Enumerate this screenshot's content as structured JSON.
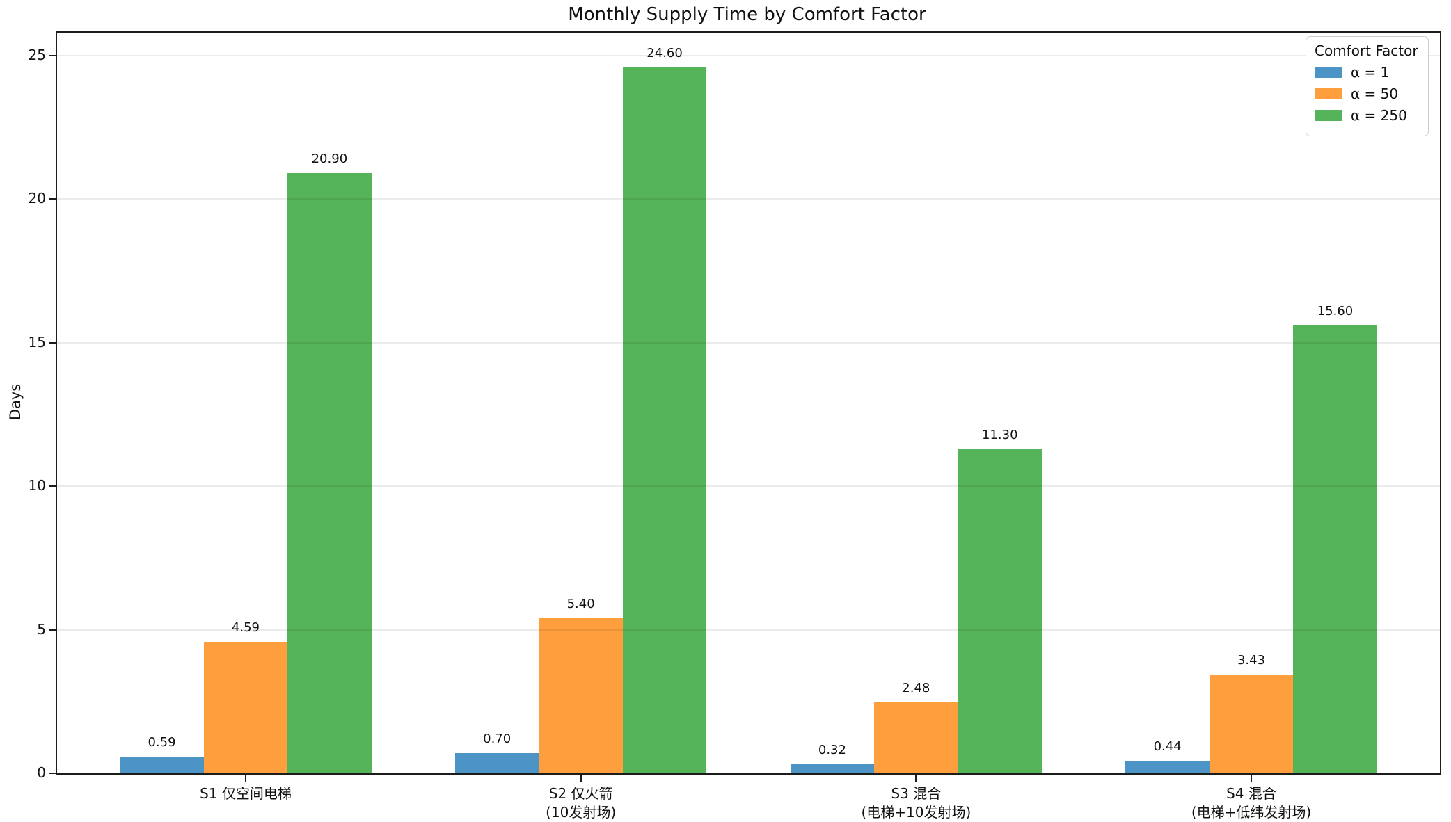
{
  "chart_data": {
    "type": "bar",
    "title": "Monthly Supply Time by Comfort Factor",
    "ylabel": "Days",
    "xlabel": "",
    "ylim": [
      0,
      25.8
    ],
    "yticks": [
      0,
      5,
      10,
      15,
      20,
      25
    ],
    "grid": "horizontal-light",
    "legend": {
      "title": "Comfort Factor",
      "position": "upper-right"
    },
    "categories": [
      {
        "lines": [
          "S1 仅空间电梯"
        ]
      },
      {
        "lines": [
          "S2 仅火箭",
          "(10发射场)"
        ]
      },
      {
        "lines": [
          "S3 混合",
          "(电梯+10发射场)"
        ]
      },
      {
        "lines": [
          "S4 混合",
          "(电梯+低纬发射场)"
        ]
      }
    ],
    "series": [
      {
        "name": "α = 1",
        "color": "#4D94C6",
        "values": [
          0.59,
          0.7,
          0.32,
          0.44
        ],
        "labels": [
          "0.59",
          "0.70",
          "0.32",
          "0.44"
        ]
      },
      {
        "name": "α = 50",
        "color": "#FF9E3C",
        "values": [
          4.59,
          5.4,
          2.48,
          3.43
        ],
        "labels": [
          "4.59",
          "5.40",
          "2.48",
          "3.43"
        ]
      },
      {
        "name": "α = 250",
        "color": "#55B35A",
        "values": [
          20.9,
          24.6,
          11.3,
          15.6
        ],
        "labels": [
          "20.90",
          "24.60",
          "11.30",
          "15.60"
        ]
      }
    ],
    "axis_color": "#1c1c1c",
    "gridline_color": "#ebebeb"
  }
}
